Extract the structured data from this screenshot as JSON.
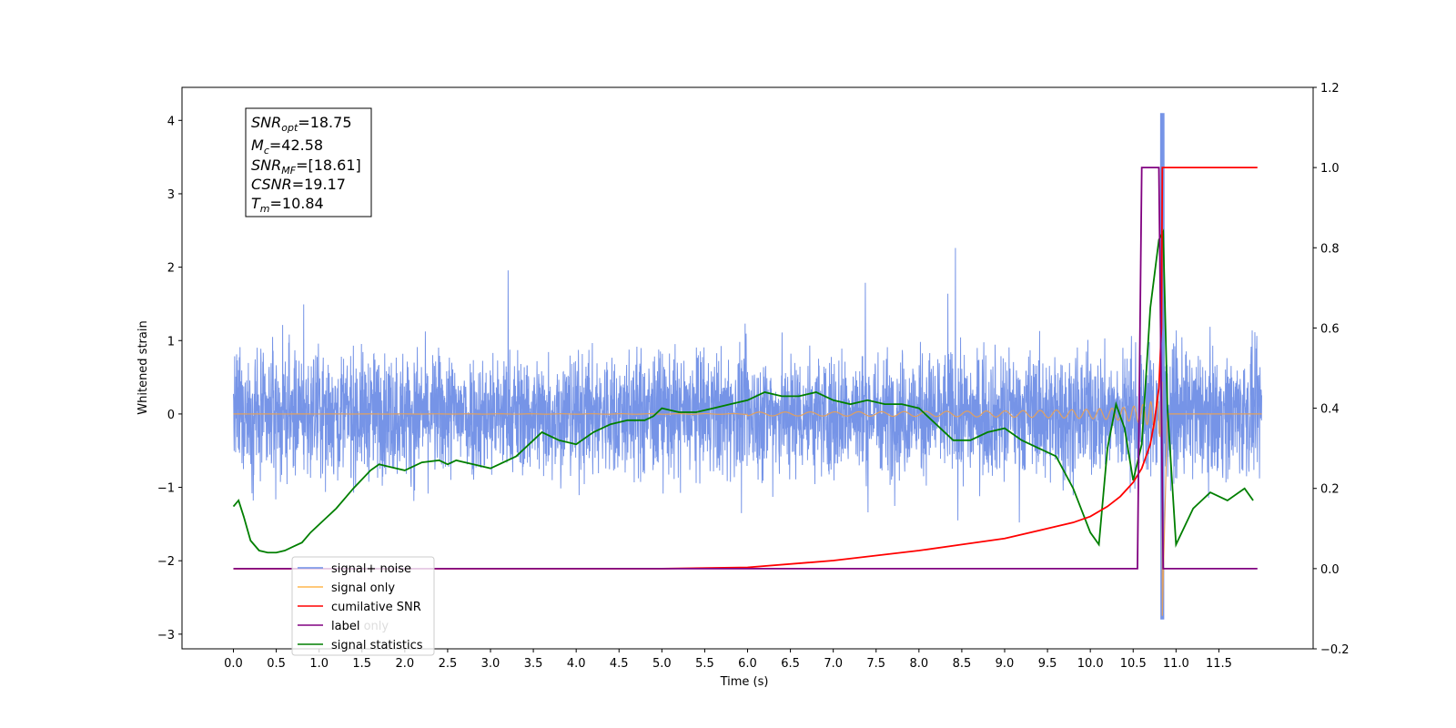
{
  "chart_data": {
    "type": "line",
    "xlabel": "Time (s)",
    "ylabel": "Whitened strain",
    "xlim": [
      -0.6,
      12.6
    ],
    "ylim": [
      -3.2,
      4.45
    ],
    "y2lim": [
      -0.2,
      1.2
    ],
    "x_ticks": [
      "0.0",
      "0.5",
      "1.0",
      "1.5",
      "2.0",
      "2.5",
      "3.0",
      "3.5",
      "4.0",
      "4.5",
      "5.0",
      "5.5",
      "6.0",
      "6.5",
      "7.0",
      "7.5",
      "8.0",
      "8.5",
      "9.0",
      "9.5",
      "10.0",
      "10.5",
      "11.0",
      "11.5"
    ],
    "y_ticks": [
      "−3",
      "−2",
      "−1",
      "0",
      "1",
      "2",
      "3",
      "4"
    ],
    "y2_ticks": [
      "−0.2",
      "0.0",
      "0.2",
      "0.4",
      "0.6",
      "0.8",
      "1.0",
      "1.2"
    ],
    "annotation": {
      "snr_opt": "=18.75",
      "mc": "=42.58",
      "snr_mf": "=[18.61]",
      "csnr": "=19.17",
      "tm": "=10.84"
    },
    "legend": {
      "placement": "lower-left",
      "entries": [
        "signal+ noise",
        "signal only",
        "cumilative SNR",
        "label",
        "signal statistics"
      ],
      "hidden_entry": "label only"
    },
    "colors": {
      "noise": "#6f8ee6",
      "signal": "#ffb74d",
      "signal_burst": "#e0a060",
      "cumsnr": "#ff0000",
      "label": "#800080",
      "stats": "#007f00"
    },
    "series": [
      {
        "name": "signal statistics",
        "axis": "right",
        "x": [
          0.0,
          0.06,
          0.12,
          0.2,
          0.3,
          0.4,
          0.5,
          0.6,
          0.7,
          0.8,
          0.9,
          1.0,
          1.2,
          1.4,
          1.6,
          1.7,
          1.8,
          2.0,
          2.2,
          2.4,
          2.5,
          2.6,
          2.8,
          3.0,
          3.1,
          3.3,
          3.5,
          3.6,
          3.8,
          4.0,
          4.2,
          4.4,
          4.6,
          4.8,
          4.9,
          5.0,
          5.2,
          5.4,
          5.6,
          5.8,
          6.0,
          6.2,
          6.4,
          6.6,
          6.8,
          7.0,
          7.2,
          7.4,
          7.6,
          7.8,
          8.0,
          8.2,
          8.4,
          8.6,
          8.8,
          9.0,
          9.2,
          9.4,
          9.6,
          9.8,
          10.0,
          10.1,
          10.2,
          10.3,
          10.4,
          10.5,
          10.6,
          10.7,
          10.8,
          10.85,
          10.9,
          11.0,
          11.2,
          11.4,
          11.6,
          11.8,
          11.9
        ],
        "y": [
          0.155,
          0.17,
          0.13,
          0.07,
          0.045,
          0.04,
          0.04,
          0.045,
          0.055,
          0.065,
          0.09,
          0.11,
          0.15,
          0.2,
          0.245,
          0.26,
          0.255,
          0.245,
          0.265,
          0.27,
          0.26,
          0.27,
          0.26,
          0.25,
          0.26,
          0.28,
          0.32,
          0.34,
          0.32,
          0.31,
          0.34,
          0.36,
          0.37,
          0.37,
          0.38,
          0.4,
          0.39,
          0.39,
          0.4,
          0.41,
          0.42,
          0.44,
          0.43,
          0.43,
          0.44,
          0.42,
          0.41,
          0.42,
          0.41,
          0.41,
          0.4,
          0.36,
          0.32,
          0.32,
          0.34,
          0.35,
          0.32,
          0.3,
          0.28,
          0.2,
          0.09,
          0.06,
          0.3,
          0.41,
          0.35,
          0.22,
          0.31,
          0.65,
          0.82,
          0.84,
          0.4,
          0.06,
          0.15,
          0.19,
          0.17,
          0.2,
          0.17
        ]
      },
      {
        "name": "cumilative SNR",
        "axis": "right",
        "x": [
          0.0,
          5.0,
          6.0,
          7.0,
          8.0,
          8.5,
          9.0,
          9.5,
          9.8,
          10.0,
          10.2,
          10.35,
          10.5,
          10.6,
          10.7,
          10.75,
          10.8,
          10.83,
          10.84,
          10.85,
          11.0,
          11.5,
          11.95
        ],
        "y": [
          0.0,
          0.0,
          0.003,
          0.02,
          0.045,
          0.06,
          0.075,
          0.1,
          0.115,
          0.13,
          0.155,
          0.18,
          0.215,
          0.25,
          0.31,
          0.37,
          0.45,
          0.6,
          1.0,
          1.0,
          1.0,
          1.0,
          1.0
        ]
      },
      {
        "name": "label",
        "axis": "right",
        "x": [
          0.0,
          10.55,
          10.6,
          10.8,
          10.85,
          11.95
        ],
        "y": [
          0,
          0,
          1,
          1,
          0,
          0
        ]
      }
    ]
  }
}
